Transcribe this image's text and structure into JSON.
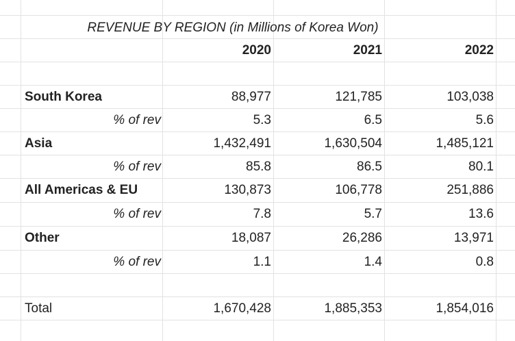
{
  "sheet": {
    "title": "REVENUE BY REGION (in Millions of Korea Won)",
    "years": [
      "2020",
      "2021",
      "2022"
    ],
    "regions": [
      {
        "name": "South Korea",
        "values": [
          "88,977",
          "121,785",
          "103,038"
        ],
        "pct_label": "% of rev",
        "pct": [
          "5.3",
          "6.5",
          "5.6"
        ]
      },
      {
        "name": "Asia",
        "values": [
          "1,432,491",
          "1,630,504",
          "1,485,121"
        ],
        "pct_label": "% of rev",
        "pct": [
          "85.8",
          "86.5",
          "80.1"
        ]
      },
      {
        "name": "All Americas & EU",
        "values": [
          "130,873",
          "106,778",
          "251,886"
        ],
        "pct_label": "% of rev",
        "pct": [
          "7.8",
          "5.7",
          "13.6"
        ]
      },
      {
        "name": "Other",
        "values": [
          "18,087",
          "26,286",
          "13,971"
        ],
        "pct_label": "% of rev",
        "pct": [
          "1.1",
          "1.4",
          "0.8"
        ]
      }
    ],
    "total": {
      "label": "Total",
      "values": [
        "1,670,428",
        "1,885,353",
        "1,854,016"
      ]
    }
  }
}
